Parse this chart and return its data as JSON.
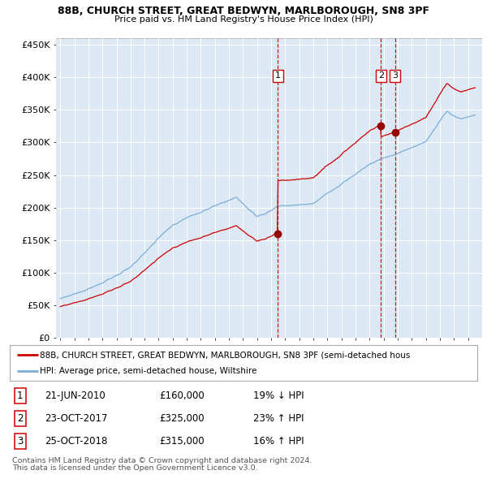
{
  "title1": "88B, CHURCH STREET, GREAT BEDWYN, MARLBOROUGH, SN8 3PF",
  "title2": "Price paid vs. HM Land Registry's House Price Index (HPI)",
  "plot_bg_color": "#ffffff",
  "fig_bg_color": "#ffffff",
  "chart_bg_color": "#dce9f5",
  "hpi_color": "#7aaed6",
  "price_color": "#cc0000",
  "vline_color": "#cc0000",
  "grid_color": "#c8d8e8",
  "sale_year_vals": [
    2010.47,
    2017.81,
    2018.81
  ],
  "sale_prices": [
    160000,
    325000,
    315000
  ],
  "sale_labels": [
    "1",
    "2",
    "3"
  ],
  "sale_table": [
    {
      "num": "1",
      "date": "21-JUN-2010",
      "price": "£160,000",
      "pct": "19% ↓ HPI"
    },
    {
      "num": "2",
      "date": "23-OCT-2017",
      "price": "£325,000",
      "pct": "23% ↑ HPI"
    },
    {
      "num": "3",
      "date": "25-OCT-2018",
      "price": "£315,000",
      "pct": "16% ↑ HPI"
    }
  ],
  "legend_line1": "88B, CHURCH STREET, GREAT BEDWYN, MARLBOROUGH, SN8 3PF (semi-detached hous",
  "legend_line2": "HPI: Average price, semi-detached house, Wiltshire",
  "footer1": "Contains HM Land Registry data © Crown copyright and database right 2024.",
  "footer2": "This data is licensed under the Open Government Licence v3.0.",
  "ylim": [
    0,
    460000
  ],
  "yticks": [
    0,
    50000,
    100000,
    150000,
    200000,
    250000,
    300000,
    350000,
    400000,
    450000
  ],
  "ytick_labels": [
    "£0",
    "£50K",
    "£100K",
    "£150K",
    "£200K",
    "£250K",
    "£300K",
    "£350K",
    "£400K",
    "£450K"
  ],
  "xlim_start": 1994.7,
  "xlim_end": 2025.0
}
